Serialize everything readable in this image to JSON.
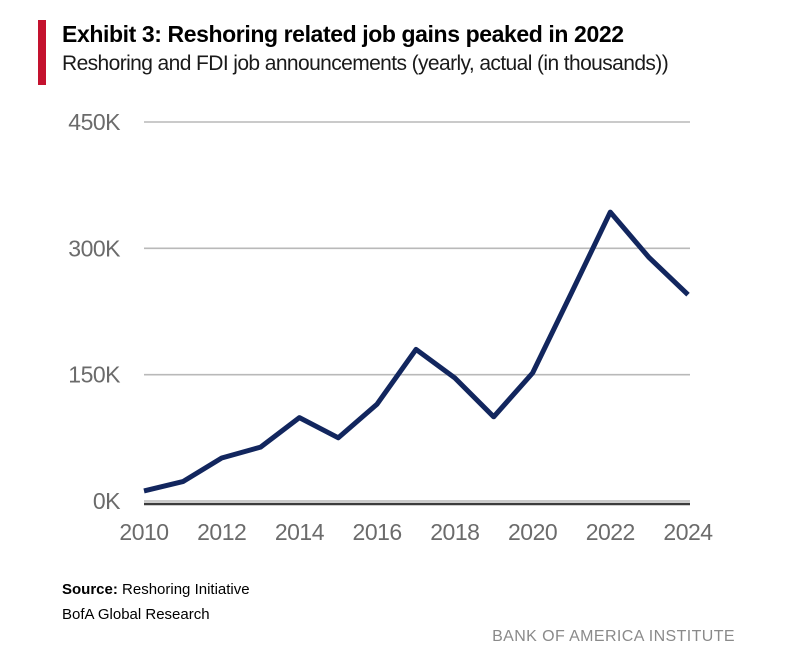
{
  "header": {
    "exhibit_title": "Exhibit 3: Reshoring related job gains peaked in 2022",
    "subtitle": "Reshoring and FDI job announcements (yearly, actual (in thousands))"
  },
  "chart_data": {
    "type": "line",
    "title": "Exhibit 3: Reshoring related job gains peaked in 2022",
    "subtitle": "Reshoring and FDI job announcements (yearly, actual (in thousands))",
    "x": [
      2010,
      2011,
      2012,
      2013,
      2014,
      2015,
      2016,
      2017,
      2018,
      2019,
      2020,
      2021,
      2022,
      2023,
      2024
    ],
    "series": [
      {
        "name": "Reshoring and FDI job announcements (thousands)",
        "values": [
          12,
          23,
          51,
          64,
          99,
          75,
          115,
          180,
          146,
          100,
          152,
          247,
          343,
          289,
          245
        ]
      }
    ],
    "xlim": [
      2010,
      2024
    ],
    "ylim": [
      0,
      450
    ],
    "x_ticks": [
      {
        "value": 2010,
        "label": "2010"
      },
      {
        "value": 2012,
        "label": "2012"
      },
      {
        "value": 2014,
        "label": "2014"
      },
      {
        "value": 2016,
        "label": "2016"
      },
      {
        "value": 2018,
        "label": "2018"
      },
      {
        "value": 2020,
        "label": "2020"
      },
      {
        "value": 2022,
        "label": "2022"
      },
      {
        "value": 2024,
        "label": "2024"
      }
    ],
    "y_ticks": [
      {
        "value": 450,
        "label": "450K"
      },
      {
        "value": 300,
        "label": "300K"
      },
      {
        "value": 150,
        "label": "150K"
      },
      {
        "value": 0,
        "label": "0K"
      }
    ],
    "grid": "horizontal",
    "legend": "none"
  },
  "footer": {
    "source_label": "Source:",
    "source_text": " Reshoring Initiative",
    "source_line2": "BofA Global Research",
    "brand": "BANK OF AMERICA INSTITUTE"
  },
  "colors": {
    "accent_red": "#c4122e",
    "line_navy": "#12265e",
    "gridline_gray": "#b9b9b9",
    "axis_dark": "#3c3c3c",
    "tick_label_gray": "#6b6b6b",
    "brand_gray": "#8a8a8a"
  }
}
